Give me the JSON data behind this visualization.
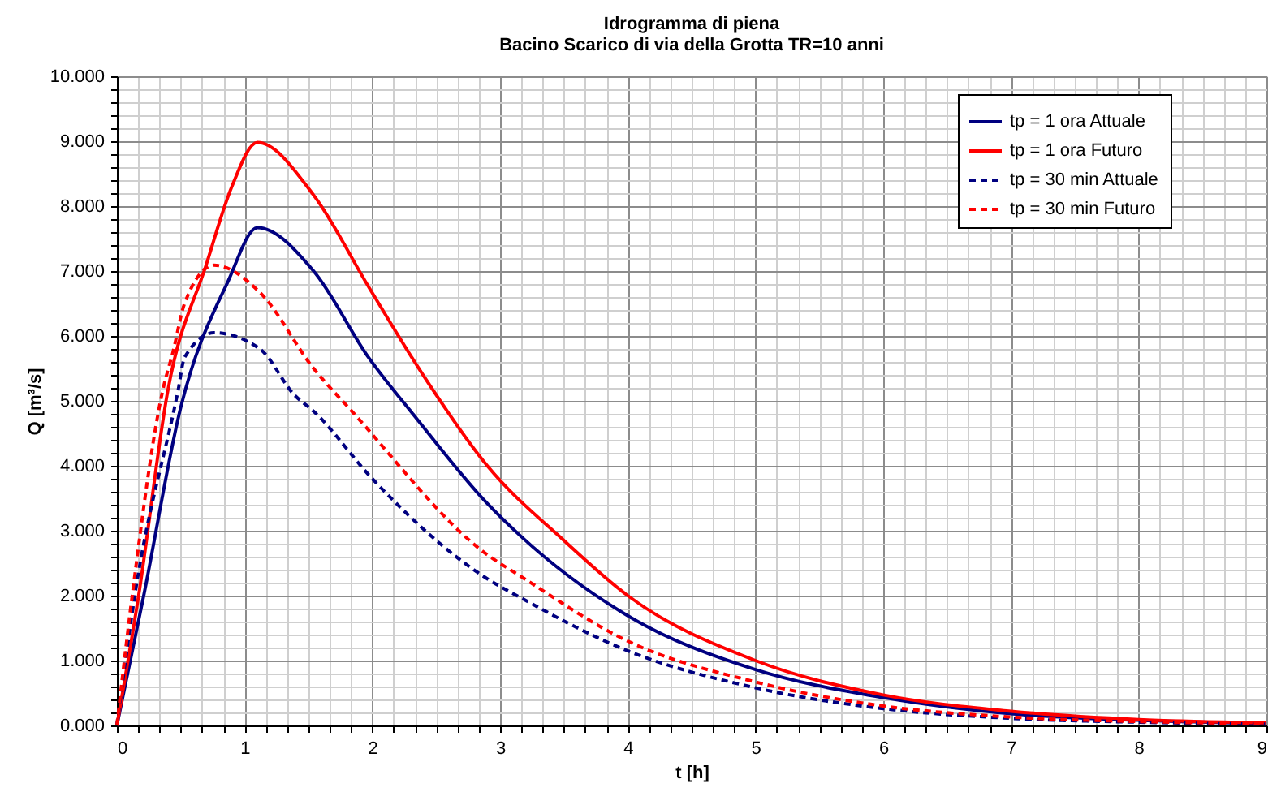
{
  "chart_data": {
    "type": "line",
    "title": "Idrogramma di piena",
    "subtitle": "Bacino Scarico di via della Grotta TR=10 anni",
    "xlabel": "t [h]",
    "ylabel": "Q [m³/s]",
    "xlim": [
      0,
      9
    ],
    "ylim": [
      0,
      10
    ],
    "xticks": [
      0,
      {
        "value": 0.1667,
        "label": null
      },
      {
        "value": 0.3333,
        "label": null
      },
      {
        "value": 0.5,
        "label": null
      },
      {
        "value": 0.6667,
        "label": null
      },
      {
        "value": 0.8333,
        "label": null
      },
      1,
      {
        "value": 1.1667,
        "label": null
      },
      {
        "value": 1.3333,
        "label": null
      },
      {
        "value": 1.5,
        "label": null
      },
      {
        "value": 1.6667,
        "label": null
      },
      {
        "value": 1.8333,
        "label": null
      },
      2,
      {
        "value": 2.1667,
        "label": null
      },
      {
        "value": 2.3333,
        "label": null
      },
      {
        "value": 2.5,
        "label": null
      },
      {
        "value": 2.6667,
        "label": null
      },
      {
        "value": 2.8333,
        "label": null
      },
      3,
      {
        "value": 3.1667,
        "label": null
      },
      {
        "value": 3.3333,
        "label": null
      },
      {
        "value": 3.5,
        "label": null
      },
      {
        "value": 3.6667,
        "label": null
      },
      {
        "value": 3.8333,
        "label": null
      },
      4,
      {
        "value": 4.1667,
        "label": null
      },
      {
        "value": 4.3333,
        "label": null
      },
      {
        "value": 4.5,
        "label": null
      },
      {
        "value": 4.6667,
        "label": null
      },
      {
        "value": 4.8333,
        "label": null
      },
      5,
      {
        "value": 5.1667,
        "label": null
      },
      {
        "value": 5.3333,
        "label": null
      },
      {
        "value": 5.5,
        "label": null
      },
      {
        "value": 5.6667,
        "label": null
      },
      {
        "value": 5.8333,
        "label": null
      },
      6,
      {
        "value": 6.1667,
        "label": null
      },
      {
        "value": 6.3333,
        "label": null
      },
      {
        "value": 6.5,
        "label": null
      },
      {
        "value": 6.6667,
        "label": null
      },
      {
        "value": 6.8333,
        "label": null
      },
      7,
      {
        "value": 7.1667,
        "label": null
      },
      {
        "value": 7.3333,
        "label": null
      },
      {
        "value": 7.5,
        "label": null
      },
      {
        "value": 7.6667,
        "label": null
      },
      {
        "value": 7.8333,
        "label": null
      },
      8,
      {
        "value": 8.1667,
        "label": null
      },
      {
        "value": 8.3333,
        "label": null
      },
      {
        "value": 8.5,
        "label": null
      },
      {
        "value": 8.6667,
        "label": null
      },
      {
        "value": 8.8333,
        "label": null
      },
      9
    ],
    "yticks": [
      {
        "value": 0,
        "label": "0.000"
      },
      {
        "value": 0.2,
        "label": null
      },
      {
        "value": 0.4,
        "label": null
      },
      {
        "value": 0.6,
        "label": null
      },
      {
        "value": 0.8,
        "label": null
      },
      {
        "value": 1,
        "label": "1.000"
      },
      {
        "value": 1.2,
        "label": null
      },
      {
        "value": 1.4,
        "label": null
      },
      {
        "value": 1.6,
        "label": null
      },
      {
        "value": 1.8,
        "label": null
      },
      {
        "value": 2,
        "label": "2.000"
      },
      {
        "value": 2.2,
        "label": null
      },
      {
        "value": 2.4,
        "label": null
      },
      {
        "value": 2.6,
        "label": null
      },
      {
        "value": 2.8,
        "label": null
      },
      {
        "value": 3,
        "label": "3.000"
      },
      {
        "value": 3.2,
        "label": null
      },
      {
        "value": 3.4,
        "label": null
      },
      {
        "value": 3.6,
        "label": null
      },
      {
        "value": 3.8,
        "label": null
      },
      {
        "value": 4,
        "label": "4.000"
      },
      {
        "value": 4.2,
        "label": null
      },
      {
        "value": 4.4,
        "label": null
      },
      {
        "value": 4.6,
        "label": null
      },
      {
        "value": 4.8,
        "label": null
      },
      {
        "value": 5,
        "label": "5.000"
      },
      {
        "value": 5.2,
        "label": null
      },
      {
        "value": 5.4,
        "label": null
      },
      {
        "value": 5.6,
        "label": null
      },
      {
        "value": 5.8,
        "label": null
      },
      {
        "value": 6,
        "label": "6.000"
      },
      {
        "value": 6.2,
        "label": null
      },
      {
        "value": 6.4,
        "label": null
      },
      {
        "value": 6.6,
        "label": null
      },
      {
        "value": 6.8,
        "label": null
      },
      {
        "value": 7,
        "label": "7.000"
      },
      {
        "value": 7.2,
        "label": null
      },
      {
        "value": 7.4,
        "label": null
      },
      {
        "value": 7.6,
        "label": null
      },
      {
        "value": 7.8,
        "label": null
      },
      {
        "value": 8,
        "label": "8.000"
      },
      {
        "value": 8.2,
        "label": null
      },
      {
        "value": 8.4,
        "label": null
      },
      {
        "value": 8.6,
        "label": null
      },
      {
        "value": 8.8,
        "label": null
      },
      {
        "value": 9,
        "label": "9.000"
      },
      {
        "value": 9.2,
        "label": null
      },
      {
        "value": 9.4,
        "label": null
      },
      {
        "value": 9.6,
        "label": null
      },
      {
        "value": 9.8,
        "label": null
      },
      {
        "value": 10,
        "label": "10.000"
      }
    ],
    "grid": true,
    "legend": "top right",
    "marker": "none",
    "series": [
      {
        "name": "tp = 1 ora Attuale",
        "color": "#000080",
        "line_style": "solid",
        "x": [
          0,
          0.21,
          0.5,
          0.87,
          1.1,
          1.54,
          1.97,
          2.35,
          2.9,
          3.16,
          4.0,
          5.0,
          6.0,
          7.0,
          8.0,
          9.0
        ],
        "values": [
          0,
          2.0,
          4.9,
          6.84,
          7.67,
          7.0,
          5.67,
          4.72,
          3.42,
          2.92,
          1.69,
          0.86,
          0.43,
          0.18,
          0.08,
          0.03
        ]
      },
      {
        "name": "tp = 1 ora Futuro",
        "color": "#ff0000",
        "line_style": "solid",
        "x": [
          0,
          0.17,
          0.4,
          0.7,
          0.9,
          1.1,
          1.54,
          1.97,
          2.39,
          2.9,
          3.5,
          4.0,
          5.0,
          6.0,
          7.0,
          8.0,
          9.0
        ],
        "values": [
          0,
          2.0,
          5.17,
          7.1,
          8.3,
          8.98,
          8.17,
          6.76,
          5.42,
          4.0,
          2.85,
          2.0,
          1.0,
          0.47,
          0.22,
          0.09,
          0.04
        ]
      },
      {
        "name": "tp = 30 min Attuale",
        "color": "#000080",
        "line_style": "dashed",
        "x": [
          0,
          0.14,
          0.48,
          0.53,
          0.76,
          1.12,
          1.39,
          1.54,
          2.0,
          2.9,
          3.16,
          4.0,
          5.0,
          6.0,
          7.0,
          8.0,
          9.0
        ],
        "values": [
          0,
          2.0,
          5.17,
          5.67,
          6.05,
          5.8,
          5.09,
          4.84,
          3.8,
          2.26,
          1.97,
          1.15,
          0.58,
          0.26,
          0.11,
          0.05,
          0.02
        ]
      },
      {
        "name": "tp = 30 min Futuro",
        "color": "#ff0000",
        "line_style": "dashed",
        "x": [
          0,
          0.12,
          0.36,
          0.44,
          0.53,
          0.76,
          1.12,
          1.54,
          1.84,
          2.9,
          3.16,
          4.0,
          5.0,
          6.0,
          7.0,
          8.0,
          9.0
        ],
        "values": [
          0,
          2.0,
          5.17,
          5.76,
          6.5,
          7.09,
          6.67,
          5.5,
          4.84,
          2.63,
          2.3,
          1.3,
          0.67,
          0.3,
          0.13,
          0.06,
          0.03
        ]
      }
    ]
  }
}
